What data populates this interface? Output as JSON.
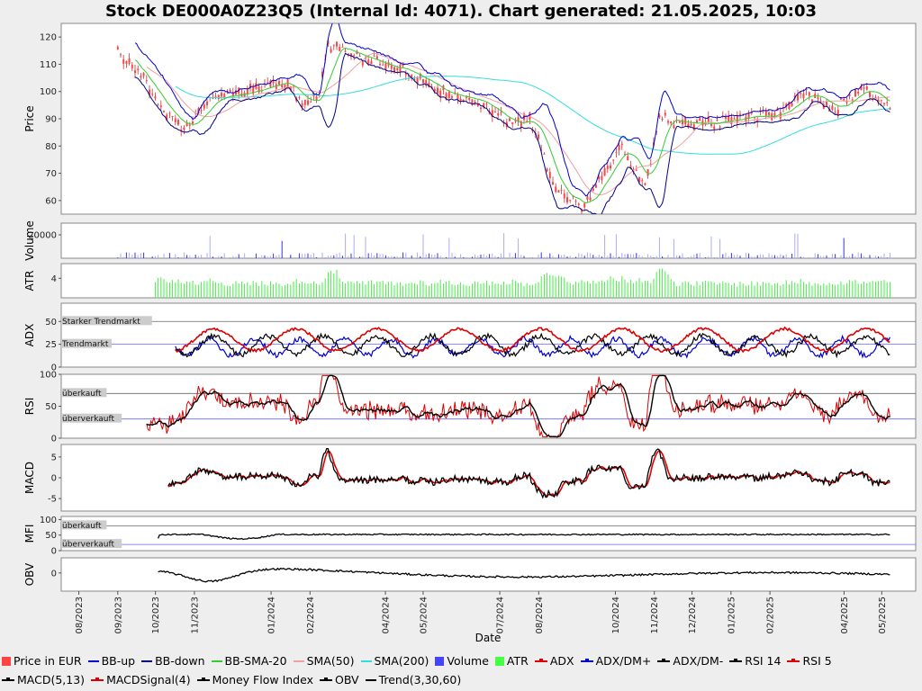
{
  "title": "Stock DE000A0Z23Q5 (Internal Id: 4071). Chart generated: 21.05.2025, 10:03",
  "x_axis_label": "Date",
  "x_ticks": [
    "08/2023",
    "09/2023",
    "10/2023",
    "11/2023",
    "01/2024",
    "02/2024",
    "04/2024",
    "05/2024",
    "07/2024",
    "08/2024",
    "10/2024",
    "11/2024",
    "12/2024",
    "01/2025",
    "02/2025",
    "04/2025",
    "05/2025"
  ],
  "panels": [
    {
      "key": "price",
      "ylabel": "Price",
      "ticks": [
        "60",
        "70",
        "80",
        "90",
        "100",
        "110",
        "120"
      ]
    },
    {
      "key": "volume",
      "ylabel": "Volume",
      "ticks": [
        "20000"
      ]
    },
    {
      "key": "atr",
      "ylabel": "ATR",
      "ticks": [
        "4"
      ]
    },
    {
      "key": "adx",
      "ylabel": "ADX",
      "ticks": [
        "0",
        "25",
        "50"
      ]
    },
    {
      "key": "rsi",
      "ylabel": "RSI",
      "ticks": [
        "0",
        "50",
        "100"
      ]
    },
    {
      "key": "macd",
      "ylabel": "MACD",
      "ticks": [
        "-5",
        "0",
        "5"
      ]
    },
    {
      "key": "mfi",
      "ylabel": "MFI",
      "ticks": [
        "0",
        "50",
        "100"
      ]
    },
    {
      "key": "obv",
      "ylabel": "OBV",
      "ticks": [
        "0"
      ]
    }
  ],
  "bands": {
    "adx_strong": "Starker Trendmarkt",
    "adx_trend": "Trendmarkt",
    "rsi_over": "überkauft",
    "rsi_under": "überverkauft",
    "mfi_over": "überkauft",
    "mfi_under": "überverkauft"
  },
  "legend": [
    {
      "label": "Price in EUR",
      "color": "#ff4444",
      "kind": "box"
    },
    {
      "label": "BB-up",
      "color": "#0000cc",
      "kind": "line"
    },
    {
      "label": "BB-down",
      "color": "#000088",
      "kind": "line"
    },
    {
      "label": "BB-SMA-20",
      "color": "#33cc33",
      "kind": "line"
    },
    {
      "label": "SMA(50)",
      "color": "#f0a0a0",
      "kind": "line"
    },
    {
      "label": "SMA(200)",
      "color": "#33dddd",
      "kind": "line"
    },
    {
      "label": "Volume",
      "color": "#4444ff",
      "kind": "box"
    },
    {
      "label": "ATR",
      "color": "#44ff44",
      "kind": "box"
    },
    {
      "label": "ADX",
      "color": "#dd0000",
      "kind": "dotline"
    },
    {
      "label": "ADX/DM+",
      "color": "#0000cc",
      "kind": "dotline"
    },
    {
      "label": "ADX/DM-",
      "color": "#000000",
      "kind": "dotline"
    },
    {
      "label": "RSI 14",
      "color": "#000000",
      "kind": "dotline"
    },
    {
      "label": "RSI 5",
      "color": "#dd0000",
      "kind": "dotline"
    },
    {
      "label": "MACD(5,13)",
      "color": "#000000",
      "kind": "dotline"
    },
    {
      "label": "MACDSignal(4)",
      "color": "#dd0000",
      "kind": "dotline"
    },
    {
      "label": "Money Flow Index",
      "color": "#000000",
      "kind": "dotline"
    },
    {
      "label": "OBV",
      "color": "#000000",
      "kind": "dotline"
    },
    {
      "label": "Trend(3,30,60)",
      "color": "#000000",
      "kind": "line"
    }
  ],
  "chart_data": {
    "type": "line",
    "x_dates": [
      "2023-09-01",
      "2023-09-15",
      "2023-10-01",
      "2023-10-10",
      "2023-10-25",
      "2023-11-15",
      "2023-12-15",
      "2024-01-10",
      "2024-01-25",
      "2024-02-08",
      "2024-02-15",
      "2024-03-15",
      "2024-04-15",
      "2024-05-15",
      "2024-06-15",
      "2024-07-10",
      "2024-07-25",
      "2024-08-15",
      "2024-09-05",
      "2024-10-05",
      "2024-10-25",
      "2024-11-05",
      "2024-12-05",
      "2025-01-05",
      "2025-02-10",
      "2025-03-01",
      "2025-03-25",
      "2025-04-15",
      "2025-05-08"
    ],
    "price": [
      115,
      108,
      98,
      91,
      86,
      98,
      100,
      104,
      96,
      98,
      117,
      112,
      108,
      100,
      96,
      88,
      90,
      63,
      58,
      80,
      66,
      90,
      88,
      90,
      92,
      100,
      93,
      102,
      93
    ],
    "y_range": [
      55,
      125
    ],
    "series_names": [
      "Price in EUR",
      "BB-up",
      "BB-down",
      "BB-SMA-20",
      "SMA(50)",
      "SMA(200)",
      "Volume",
      "ATR",
      "ADX",
      "ADX/DM+",
      "ADX/DM-",
      "RSI 14",
      "RSI 5",
      "MACD(5,13)",
      "MACDSignal(4)",
      "Money Flow Index",
      "OBV",
      "Trend(3,30,60)"
    ]
  }
}
